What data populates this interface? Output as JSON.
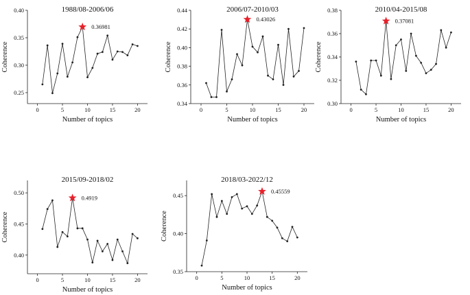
{
  "colors": {
    "line": "#222222",
    "axis": "#222222",
    "star": "#e8202a",
    "background": "#ffffff"
  },
  "chart_data": [
    {
      "type": "line",
      "title": "1988/08-2006/06",
      "xlabel": "Number of topics",
      "ylabel": "Coherence",
      "xlim": [
        -2,
        22
      ],
      "ylim": [
        0.23,
        0.4
      ],
      "xticks": [
        0,
        5,
        10,
        15,
        20
      ],
      "xtick_labels": [
        "0",
        "5",
        "10",
        "15",
        "20"
      ],
      "yticks": [
        0.25,
        0.3,
        0.35,
        0.4
      ],
      "ytick_labels": [
        "0.25",
        "0.30",
        "0.35",
        "0.40"
      ],
      "x": [
        1,
        2,
        3,
        4,
        5,
        6,
        7,
        8,
        9,
        10,
        11,
        12,
        13,
        14,
        15,
        16,
        17,
        18,
        19,
        20
      ],
      "values": [
        0.265,
        0.336,
        0.249,
        0.285,
        0.339,
        0.279,
        0.305,
        0.351,
        0.36981,
        0.278,
        0.295,
        0.321,
        0.324,
        0.354,
        0.31,
        0.325,
        0.324,
        0.318,
        0.338,
        0.335
      ],
      "max_point": {
        "x": 9,
        "y": 0.36981,
        "label": "0.36981"
      }
    },
    {
      "type": "line",
      "title": "2006/07-2010/03",
      "xlabel": "Number of topics",
      "ylabel": "Coherence",
      "xlim": [
        -2,
        22
      ],
      "ylim": [
        0.34,
        0.44
      ],
      "xticks": [
        0,
        5,
        10,
        15,
        20
      ],
      "xtick_labels": [
        "0",
        "5",
        "10",
        "15",
        "20"
      ],
      "yticks": [
        0.34,
        0.36,
        0.38,
        0.4,
        0.42,
        0.44
      ],
      "ytick_labels": [
        "0.34",
        "0.36",
        "0.38",
        "0.40",
        "0.42",
        "0.44"
      ],
      "x": [
        1,
        2,
        3,
        4,
        5,
        6,
        7,
        8,
        9,
        10,
        11,
        12,
        13,
        14,
        15,
        16,
        17,
        18,
        19,
        20
      ],
      "values": [
        0.362,
        0.347,
        0.347,
        0.419,
        0.353,
        0.366,
        0.393,
        0.381,
        0.43026,
        0.401,
        0.395,
        0.412,
        0.37,
        0.366,
        0.403,
        0.36,
        0.42,
        0.369,
        0.375,
        0.421
      ],
      "max_point": {
        "x": 9,
        "y": 0.43026,
        "label": "0.43026"
      }
    },
    {
      "type": "line",
      "title": "2010/04-2015/08",
      "xlabel": "Number of topics",
      "ylabel": "Coherence",
      "xlim": [
        -2,
        22
      ],
      "ylim": [
        0.3,
        0.38
      ],
      "xticks": [
        0,
        5,
        10,
        15,
        20
      ],
      "xtick_labels": [
        "0",
        "5",
        "10",
        "15",
        "20"
      ],
      "yticks": [
        0.3,
        0.32,
        0.34,
        0.36,
        0.38
      ],
      "ytick_labels": [
        "0.30",
        "0.32",
        "0.34",
        "0.36",
        "0.38"
      ],
      "x": [
        1,
        2,
        3,
        4,
        5,
        6,
        7,
        8,
        9,
        10,
        11,
        12,
        13,
        14,
        15,
        16,
        17,
        18,
        19,
        20
      ],
      "values": [
        0.336,
        0.312,
        0.308,
        0.337,
        0.337,
        0.324,
        0.37081,
        0.321,
        0.35,
        0.355,
        0.328,
        0.36,
        0.341,
        0.335,
        0.326,
        0.329,
        0.334,
        0.363,
        0.348,
        0.361
      ],
      "max_point": {
        "x": 7,
        "y": 0.37081,
        "label": "0.37081"
      }
    },
    {
      "type": "line",
      "title": "2015/09-2018/02",
      "xlabel": "Number of topics",
      "ylabel": "Coherence",
      "xlim": [
        -2,
        22
      ],
      "ylim": [
        0.37,
        0.52
      ],
      "xticks": [
        0,
        5,
        10,
        15,
        20
      ],
      "xtick_labels": [
        "0",
        "5",
        "10",
        "15",
        "20"
      ],
      "yticks": [
        0.4,
        0.45,
        0.5
      ],
      "ytick_labels": [
        "0.40",
        "0.45",
        "0.50"
      ],
      "x": [
        1,
        2,
        3,
        4,
        5,
        6,
        7,
        8,
        9,
        10,
        11,
        12,
        13,
        14,
        15,
        16,
        17,
        18,
        19,
        20
      ],
      "values": [
        0.442,
        0.474,
        0.488,
        0.413,
        0.437,
        0.43,
        0.4919,
        0.443,
        0.443,
        0.425,
        0.388,
        0.423,
        0.406,
        0.418,
        0.392,
        0.425,
        0.406,
        0.387,
        0.434,
        0.427
      ],
      "max_point": {
        "x": 7,
        "y": 0.4919,
        "label": "0.4919"
      }
    },
    {
      "type": "line",
      "title": "2018/03-2022/12",
      "xlabel": "Number of topics",
      "ylabel": "Coherence",
      "xlim": [
        -2,
        22
      ],
      "ylim": [
        0.35,
        0.47
      ],
      "xticks": [
        0,
        5,
        10,
        15,
        20
      ],
      "xtick_labels": [
        "0",
        "5",
        "10",
        "15",
        "20"
      ],
      "yticks": [
        0.35,
        0.4,
        0.45
      ],
      "ytick_labels": [
        "0.35",
        "0.40",
        "0.45"
      ],
      "x": [
        1,
        2,
        3,
        4,
        5,
        6,
        7,
        8,
        9,
        10,
        11,
        12,
        13,
        14,
        15,
        16,
        17,
        18,
        19,
        20
      ],
      "values": [
        0.358,
        0.391,
        0.452,
        0.422,
        0.443,
        0.426,
        0.448,
        0.452,
        0.433,
        0.436,
        0.426,
        0.437,
        0.45559,
        0.422,
        0.417,
        0.408,
        0.394,
        0.39,
        0.409,
        0.395
      ],
      "max_point": {
        "x": 13,
        "y": 0.45559,
        "label": "0.45559"
      }
    }
  ]
}
